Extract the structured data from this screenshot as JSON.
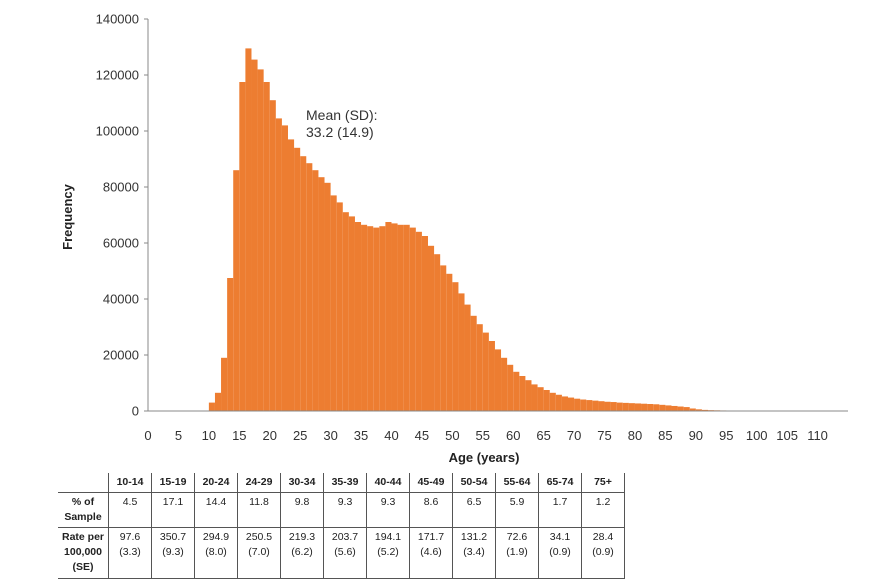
{
  "chart_data": {
    "type": "bar",
    "ylabel": "Frequency",
    "xlabel": "Age (years)",
    "ylim": [
      0,
      140000
    ],
    "xlim": [
      0,
      115
    ],
    "yticks": [
      "0",
      "20000",
      "40000",
      "60000",
      "80000",
      "100000",
      "120000",
      "140000"
    ],
    "xticks": [
      "0",
      "5",
      "10",
      "15",
      "20",
      "25",
      "30",
      "35",
      "40",
      "45",
      "50",
      "55",
      "60",
      "65",
      "70",
      "75",
      "80",
      "85",
      "90",
      "95",
      "100",
      "105",
      "110"
    ],
    "annotation_line1": "Mean (SD):",
    "annotation_line2": "33.2 (14.9)",
    "bar_color": "#ED7D31",
    "grid": false,
    "ages": [
      10,
      11,
      12,
      13,
      14,
      15,
      16,
      17,
      18,
      19,
      20,
      21,
      22,
      23,
      24,
      25,
      26,
      27,
      28,
      29,
      30,
      31,
      32,
      33,
      34,
      35,
      36,
      37,
      38,
      39,
      40,
      41,
      42,
      43,
      44,
      45,
      46,
      47,
      48,
      49,
      50,
      51,
      52,
      53,
      54,
      55,
      56,
      57,
      58,
      59,
      60,
      61,
      62,
      63,
      64,
      65,
      66,
      67,
      68,
      69,
      70,
      71,
      72,
      73,
      74,
      75,
      76,
      77,
      78,
      79,
      80,
      81,
      82,
      83,
      84,
      85,
      86,
      87,
      88,
      89,
      90,
      91,
      92,
      93,
      94,
      95,
      96,
      97,
      98,
      99,
      100,
      101,
      102,
      103,
      104,
      105,
      106,
      107,
      108,
      109,
      110
    ],
    "frequencies": [
      3000,
      6500,
      19000,
      47500,
      86000,
      117500,
      129500,
      125500,
      122000,
      117500,
      111000,
      104500,
      102000,
      97000,
      94000,
      91000,
      88500,
      86000,
      83500,
      81500,
      77000,
      74500,
      71000,
      69500,
      67500,
      66500,
      66000,
      65500,
      66000,
      67500,
      67000,
      66500,
      66500,
      65500,
      64000,
      62500,
      59000,
      56000,
      52000,
      49000,
      46000,
      42000,
      38000,
      34000,
      31000,
      28000,
      25000,
      22000,
      19000,
      16500,
      14000,
      12500,
      11000,
      9500,
      8500,
      7500,
      6500,
      5800,
      5200,
      4800,
      4400,
      4100,
      3900,
      3700,
      3500,
      3300,
      3200,
      3000,
      2900,
      2800,
      2700,
      2600,
      2500,
      2400,
      2200,
      2000,
      1800,
      1600,
      1400,
      900,
      600,
      400,
      300,
      250,
      200,
      150,
      120,
      100,
      80,
      60,
      50,
      40,
      30,
      25,
      20,
      15,
      10,
      8,
      6,
      5,
      3
    ]
  },
  "table": {
    "columns": [
      "10-14",
      "15-19",
      "20-24",
      "24-29",
      "30-34",
      "35-39",
      "40-44",
      "45-49",
      "50-54",
      "55-64",
      "65-74",
      "75+"
    ],
    "row1_label": "% of Sample",
    "row1_values": [
      "4.5",
      "17.1",
      "14.4",
      "11.8",
      "9.8",
      "9.3",
      "9.3",
      "8.6",
      "6.5",
      "5.9",
      "1.7",
      "1.2"
    ],
    "row2_label": "Rate per 100,000 (SE)",
    "row2_rates": [
      "97.6",
      "350.7",
      "294.9",
      "250.5",
      "219.3",
      "203.7",
      "194.1",
      "171.7",
      "131.2",
      "72.6",
      "34.1",
      "28.4"
    ],
    "row2_se": [
      "(3.3)",
      "(9.3)",
      "(8.0)",
      "(7.0)",
      "(6.2)",
      "(5.6)",
      "(5.2)",
      "(4.6)",
      "(3.4)",
      "(1.9)",
      "(0.9)",
      "(0.9)"
    ]
  }
}
